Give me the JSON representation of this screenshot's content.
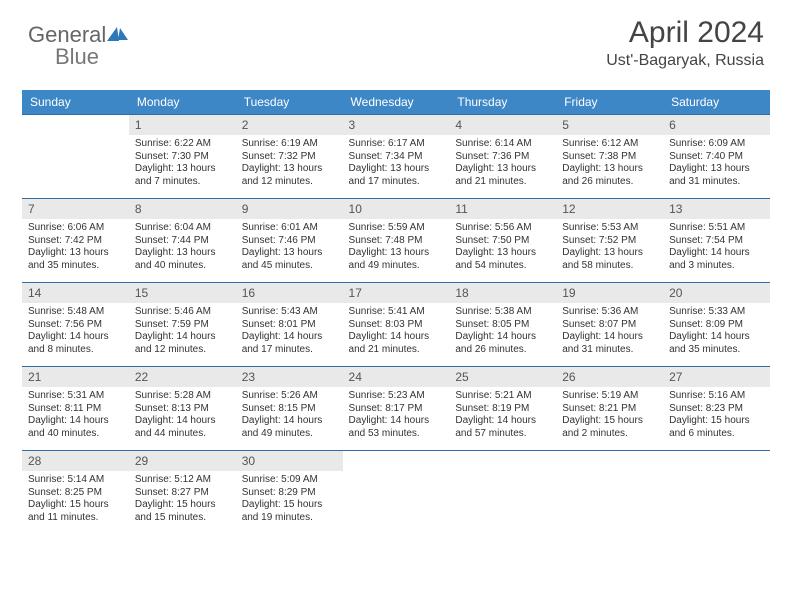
{
  "brand": {
    "part1": "General",
    "part2": "Blue"
  },
  "title": "April 2024",
  "location": "Ust'-Bagaryak, Russia",
  "colors": {
    "header_bg": "#3d87c7",
    "row_divider": "#2d6ea8",
    "daynum_bg": "#e9e9e9",
    "brand_accent": "#2d79b8"
  },
  "dayNames": [
    "Sunday",
    "Monday",
    "Tuesday",
    "Wednesday",
    "Thursday",
    "Friday",
    "Saturday"
  ],
  "grid": {
    "columns": 7,
    "rows": 5,
    "startOffset": 1,
    "daysInMonth": 30
  },
  "days": {
    "1": {
      "sunrise": "6:22 AM",
      "sunset": "7:30 PM",
      "daylight": "13 hours and 7 minutes."
    },
    "2": {
      "sunrise": "6:19 AM",
      "sunset": "7:32 PM",
      "daylight": "13 hours and 12 minutes."
    },
    "3": {
      "sunrise": "6:17 AM",
      "sunset": "7:34 PM",
      "daylight": "13 hours and 17 minutes."
    },
    "4": {
      "sunrise": "6:14 AM",
      "sunset": "7:36 PM",
      "daylight": "13 hours and 21 minutes."
    },
    "5": {
      "sunrise": "6:12 AM",
      "sunset": "7:38 PM",
      "daylight": "13 hours and 26 minutes."
    },
    "6": {
      "sunrise": "6:09 AM",
      "sunset": "7:40 PM",
      "daylight": "13 hours and 31 minutes."
    },
    "7": {
      "sunrise": "6:06 AM",
      "sunset": "7:42 PM",
      "daylight": "13 hours and 35 minutes."
    },
    "8": {
      "sunrise": "6:04 AM",
      "sunset": "7:44 PM",
      "daylight": "13 hours and 40 minutes."
    },
    "9": {
      "sunrise": "6:01 AM",
      "sunset": "7:46 PM",
      "daylight": "13 hours and 45 minutes."
    },
    "10": {
      "sunrise": "5:59 AM",
      "sunset": "7:48 PM",
      "daylight": "13 hours and 49 minutes."
    },
    "11": {
      "sunrise": "5:56 AM",
      "sunset": "7:50 PM",
      "daylight": "13 hours and 54 minutes."
    },
    "12": {
      "sunrise": "5:53 AM",
      "sunset": "7:52 PM",
      "daylight": "13 hours and 58 minutes."
    },
    "13": {
      "sunrise": "5:51 AM",
      "sunset": "7:54 PM",
      "daylight": "14 hours and 3 minutes."
    },
    "14": {
      "sunrise": "5:48 AM",
      "sunset": "7:56 PM",
      "daylight": "14 hours and 8 minutes."
    },
    "15": {
      "sunrise": "5:46 AM",
      "sunset": "7:59 PM",
      "daylight": "14 hours and 12 minutes."
    },
    "16": {
      "sunrise": "5:43 AM",
      "sunset": "8:01 PM",
      "daylight": "14 hours and 17 minutes."
    },
    "17": {
      "sunrise": "5:41 AM",
      "sunset": "8:03 PM",
      "daylight": "14 hours and 21 minutes."
    },
    "18": {
      "sunrise": "5:38 AM",
      "sunset": "8:05 PM",
      "daylight": "14 hours and 26 minutes."
    },
    "19": {
      "sunrise": "5:36 AM",
      "sunset": "8:07 PM",
      "daylight": "14 hours and 31 minutes."
    },
    "20": {
      "sunrise": "5:33 AM",
      "sunset": "8:09 PM",
      "daylight": "14 hours and 35 minutes."
    },
    "21": {
      "sunrise": "5:31 AM",
      "sunset": "8:11 PM",
      "daylight": "14 hours and 40 minutes."
    },
    "22": {
      "sunrise": "5:28 AM",
      "sunset": "8:13 PM",
      "daylight": "14 hours and 44 minutes."
    },
    "23": {
      "sunrise": "5:26 AM",
      "sunset": "8:15 PM",
      "daylight": "14 hours and 49 minutes."
    },
    "24": {
      "sunrise": "5:23 AM",
      "sunset": "8:17 PM",
      "daylight": "14 hours and 53 minutes."
    },
    "25": {
      "sunrise": "5:21 AM",
      "sunset": "8:19 PM",
      "daylight": "14 hours and 57 minutes."
    },
    "26": {
      "sunrise": "5:19 AM",
      "sunset": "8:21 PM",
      "daylight": "15 hours and 2 minutes."
    },
    "27": {
      "sunrise": "5:16 AM",
      "sunset": "8:23 PM",
      "daylight": "15 hours and 6 minutes."
    },
    "28": {
      "sunrise": "5:14 AM",
      "sunset": "8:25 PM",
      "daylight": "15 hours and 11 minutes."
    },
    "29": {
      "sunrise": "5:12 AM",
      "sunset": "8:27 PM",
      "daylight": "15 hours and 15 minutes."
    },
    "30": {
      "sunrise": "5:09 AM",
      "sunset": "8:29 PM",
      "daylight": "15 hours and 19 minutes."
    }
  },
  "labels": {
    "sunrise": "Sunrise:",
    "sunset": "Sunset:",
    "daylight": "Daylight:"
  }
}
